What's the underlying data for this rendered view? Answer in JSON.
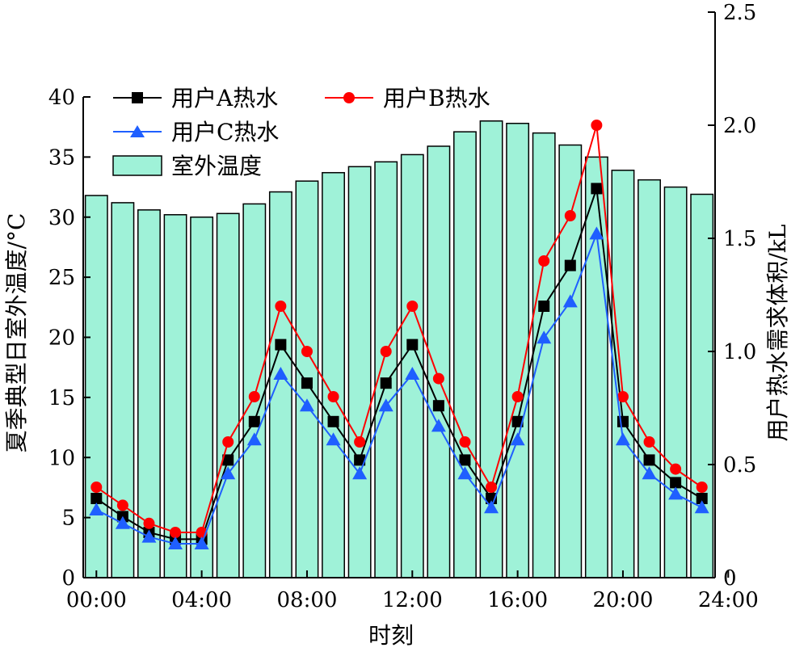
{
  "chart_data": {
    "type": "bar",
    "x_label": "时刻",
    "y_left_label": "夏季典型日室外温度/°C",
    "y_right_label": "用户热水需求体积/kL",
    "x_ticks": [
      "00:00",
      "04:00",
      "08:00",
      "12:00",
      "16:00",
      "20:00",
      "24:00"
    ],
    "y_left_ticks": [
      "0",
      "5",
      "10",
      "15",
      "20",
      "25",
      "30",
      "35",
      "40"
    ],
    "y_right_ticks": [
      "0",
      "0.5",
      "1.0",
      "1.5",
      "2.0",
      "2.5"
    ],
    "y_left_range": [
      0,
      40
    ],
    "y_right_range": [
      0,
      2.5
    ],
    "x_range": [
      0,
      24
    ],
    "x_hours": [
      0,
      1,
      2,
      3,
      4,
      5,
      6,
      7,
      8,
      9,
      10,
      11,
      12,
      13,
      14,
      15,
      16,
      17,
      18,
      19,
      20,
      21,
      22,
      23,
      24
    ],
    "bars": {
      "name": "室外温度",
      "color": "#9ff2d8",
      "values": [
        31.8,
        31.2,
        30.6,
        30.2,
        30.0,
        30.3,
        31.1,
        32.1,
        33.0,
        33.7,
        34.2,
        34.6,
        35.2,
        35.9,
        37.1,
        38.0,
        37.8,
        37.0,
        36.0,
        35.0,
        33.9,
        33.1,
        32.5,
        31.9
      ]
    },
    "series": [
      {
        "name": "用户A热水",
        "marker": "square",
        "color": "#000000",
        "values": [
          0.35,
          0.27,
          0.2,
          0.17,
          0.17,
          0.52,
          0.69,
          1.03,
          0.86,
          0.69,
          0.52,
          0.86,
          1.03,
          0.76,
          0.52,
          0.35,
          0.69,
          1.2,
          1.38,
          1.72,
          0.69,
          0.52,
          0.42,
          0.35
        ]
      },
      {
        "name": "用户B热水",
        "marker": "circle",
        "color": "#ff0000",
        "values": [
          0.4,
          0.32,
          0.24,
          0.2,
          0.2,
          0.6,
          0.8,
          1.2,
          1.0,
          0.8,
          0.6,
          1.0,
          1.2,
          0.88,
          0.6,
          0.4,
          0.8,
          1.4,
          1.6,
          2.0,
          0.8,
          0.6,
          0.48,
          0.4
        ]
      },
      {
        "name": "用户C热水",
        "marker": "triangle",
        "color": "#1f5fff",
        "values": [
          0.3,
          0.24,
          0.18,
          0.15,
          0.15,
          0.46,
          0.61,
          0.9,
          0.76,
          0.61,
          0.46,
          0.76,
          0.9,
          0.67,
          0.46,
          0.31,
          0.61,
          1.06,
          1.22,
          1.52,
          0.61,
          0.46,
          0.37,
          0.31
        ]
      }
    ],
    "legend_position": "top-left"
  }
}
